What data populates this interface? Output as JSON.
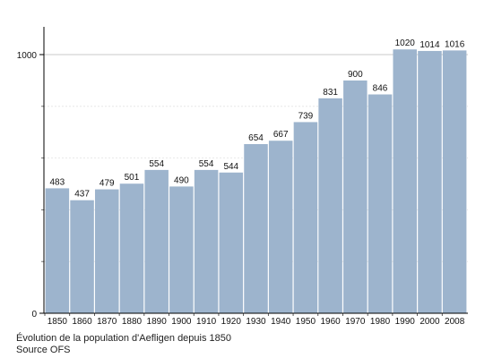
{
  "chart_data": {
    "type": "bar",
    "categories": [
      "1850",
      "1860",
      "1870",
      "1880",
      "1890",
      "1900",
      "1910",
      "1920",
      "1930",
      "1940",
      "1950",
      "1960",
      "1970",
      "1980",
      "1990",
      "2000",
      "2008"
    ],
    "values": [
      483,
      437,
      479,
      501,
      554,
      490,
      554,
      544,
      654,
      667,
      739,
      831,
      900,
      846,
      1020,
      1014,
      1016
    ],
    "data_labels": [
      "483",
      "437",
      "479",
      "501",
      "554",
      "490",
      "554",
      "544",
      "654",
      "667",
      "739",
      "831",
      "900",
      "846",
      "1020",
      "1014",
      "1016"
    ],
    "y_tick_labels": [
      "0",
      "1000"
    ],
    "y_major_ticks": [
      0,
      1000
    ],
    "y_gridlines": [
      1000
    ],
    "y_minor_gridlines": [
      200,
      400,
      600,
      800
    ],
    "ylim": [
      0,
      1100
    ],
    "grid": true,
    "colors": {
      "bar": "#9db4cd",
      "gridline": "#c8c8c8",
      "axis": "#000000",
      "text": "#111111"
    },
    "caption_line1": "Évolution de la population d'Aefligen depuis 1850",
    "caption_line2": "Source OFS"
  }
}
